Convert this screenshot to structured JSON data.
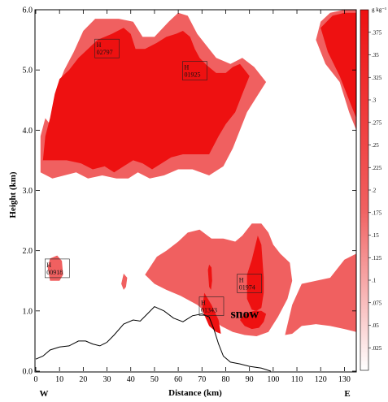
{
  "chart_data": {
    "type": "contour",
    "xlabel": "Distance (km)",
    "ylabel": "Height (km)",
    "xlim": [
      0,
      135
    ],
    "ylim": [
      0,
      6
    ],
    "x_ticks": [
      "0",
      "10",
      "20",
      "30",
      "40",
      "50",
      "60",
      "70",
      "80",
      "90",
      "100",
      "110",
      "120",
      "130"
    ],
    "y_ticks": [
      "0.0",
      "1.0",
      "2.0",
      "3.0",
      "4.0",
      "5.0",
      "6.0"
    ],
    "direction_labels": {
      "left": "W",
      "right": "E"
    },
    "colorbar": {
      "unit_label": "g kg⁻¹",
      "ticks": [
        ".025",
        ".05",
        ".075",
        ".1",
        ".125",
        ".15",
        ".175",
        ".2",
        ".225",
        ".25",
        ".275",
        ".3",
        ".325",
        ".35",
        ".375"
      ],
      "range": [
        0,
        0.4
      ],
      "colors": {
        "low": "#ffffff",
        "mid": "#f06060",
        "high": "#ee1111"
      }
    },
    "fill_colors": {
      "outer": "#f06060",
      "inner": "#ee1111"
    },
    "extrema_labels": [
      {
        "letter": "H",
        "value": "02797",
        "x": 30,
        "y": 5.35
      },
      {
        "letter": "H",
        "value": "01925",
        "x": 67,
        "y": 4.98
      },
      {
        "letter": "H",
        "value": "00918",
        "x": 9,
        "y": 1.7
      },
      {
        "letter": "H",
        "value": "01974",
        "x": 90,
        "y": 1.45
      },
      {
        "letter": "H",
        "value": "01343",
        "x": 74,
        "y": 1.07
      }
    ],
    "annotation": {
      "text": "snow",
      "x": 88,
      "y": 0.88
    },
    "terrain": [
      [
        0,
        0.2
      ],
      [
        3,
        0.25
      ],
      [
        6,
        0.35
      ],
      [
        10,
        0.4
      ],
      [
        14,
        0.42
      ],
      [
        18,
        0.5
      ],
      [
        21,
        0.5
      ],
      [
        24,
        0.45
      ],
      [
        27,
        0.42
      ],
      [
        30,
        0.48
      ],
      [
        33,
        0.6
      ],
      [
        37,
        0.78
      ],
      [
        41,
        0.85
      ],
      [
        44,
        0.83
      ],
      [
        47,
        0.95
      ],
      [
        50,
        1.07
      ],
      [
        54,
        1.0
      ],
      [
        58,
        0.88
      ],
      [
        62,
        0.82
      ],
      [
        66,
        0.92
      ],
      [
        70,
        0.95
      ],
      [
        73,
        0.9
      ],
      [
        75,
        0.7
      ],
      [
        77,
        0.45
      ],
      [
        79,
        0.25
      ],
      [
        82,
        0.15
      ],
      [
        86,
        0.12
      ],
      [
        90,
        0.08
      ],
      [
        95,
        0.05
      ],
      [
        99,
        0.0
      ]
    ],
    "regions": {
      "outer": [
        [
          [
            2,
            3.3
          ],
          [
            2,
            3.9
          ],
          [
            4,
            4.2
          ],
          [
            6,
            4.1
          ],
          [
            9,
            4.7
          ],
          [
            12,
            5.0
          ],
          [
            16,
            5.3
          ],
          [
            20,
            5.65
          ],
          [
            25,
            5.85
          ],
          [
            30,
            5.85
          ],
          [
            35,
            5.85
          ],
          [
            41,
            5.8
          ],
          [
            45,
            5.55
          ],
          [
            50,
            5.55
          ],
          [
            56,
            5.8
          ],
          [
            60,
            5.95
          ],
          [
            64,
            5.9
          ],
          [
            68,
            5.6
          ],
          [
            72,
            5.4
          ],
          [
            76,
            5.2
          ],
          [
            82,
            5.1
          ],
          [
            87,
            5.2
          ],
          [
            92,
            5.05
          ],
          [
            97,
            4.8
          ],
          [
            93,
            4.55
          ],
          [
            89,
            4.3
          ],
          [
            86,
            4.0
          ],
          [
            83,
            3.7
          ],
          [
            79,
            3.4
          ],
          [
            73,
            3.25
          ],
          [
            66,
            3.35
          ],
          [
            60,
            3.35
          ],
          [
            54,
            3.25
          ],
          [
            48,
            3.2
          ],
          [
            43,
            3.3
          ],
          [
            39,
            3.2
          ],
          [
            34,
            3.2
          ],
          [
            28,
            3.25
          ],
          [
            22,
            3.2
          ],
          [
            17,
            3.3
          ],
          [
            12,
            3.25
          ],
          [
            7,
            3.2
          ]
        ],
        [
          [
            5,
            1.72
          ],
          [
            6,
            1.87
          ],
          [
            9,
            1.92
          ],
          [
            11,
            1.83
          ],
          [
            11.5,
            1.6
          ],
          [
            10,
            1.5
          ],
          [
            6,
            1.5
          ]
        ],
        [
          [
            36,
            1.45
          ],
          [
            37,
            1.62
          ],
          [
            38.5,
            1.55
          ],
          [
            38,
            1.4
          ],
          [
            37,
            1.35
          ]
        ],
        [
          [
            46,
            1.6
          ],
          [
            51,
            1.9
          ],
          [
            55,
            2.0
          ],
          [
            60,
            2.15
          ],
          [
            64,
            2.3
          ],
          [
            69,
            2.35
          ],
          [
            74,
            2.2
          ],
          [
            79,
            2.2
          ],
          [
            84,
            2.15
          ],
          [
            87,
            2.25
          ],
          [
            91,
            2.45
          ],
          [
            95,
            2.45
          ],
          [
            98,
            2.3
          ],
          [
            100,
            2.1
          ],
          [
            103,
            1.95
          ],
          [
            107,
            1.8
          ],
          [
            108,
            1.5
          ],
          [
            106,
            1.2
          ],
          [
            102,
            0.9
          ],
          [
            98,
            0.65
          ],
          [
            93,
            0.58
          ],
          [
            88,
            0.6
          ],
          [
            83,
            0.65
          ],
          [
            78,
            0.75
          ],
          [
            74,
            0.9
          ],
          [
            68,
            1.1
          ],
          [
            61,
            1.25
          ],
          [
            55,
            1.35
          ],
          [
            50,
            1.45
          ]
        ],
        [
          [
            105,
            0.6
          ],
          [
            108,
            1.1
          ],
          [
            112,
            1.45
          ],
          [
            118,
            1.5
          ],
          [
            124,
            1.55
          ],
          [
            130,
            1.85
          ],
          [
            135,
            1.95
          ],
          [
            135,
            0.65
          ],
          [
            130,
            0.7
          ],
          [
            124,
            0.75
          ],
          [
            118,
            0.78
          ],
          [
            112,
            0.75
          ],
          [
            108,
            0.62
          ]
        ],
        [
          [
            118,
            5.5
          ],
          [
            120,
            5.8
          ],
          [
            124,
            5.95
          ],
          [
            130,
            6.0
          ],
          [
            135,
            6.0
          ],
          [
            135,
            4.0
          ],
          [
            132,
            4.3
          ],
          [
            128,
            4.8
          ],
          [
            122,
            5.1
          ]
        ]
      ],
      "inner": [
        [
          [
            3,
            3.5
          ],
          [
            4,
            3.9
          ],
          [
            6,
            4.2
          ],
          [
            8,
            4.6
          ],
          [
            10,
            4.85
          ],
          [
            14,
            5.0
          ],
          [
            18,
            5.2
          ],
          [
            22,
            5.35
          ],
          [
            26,
            5.5
          ],
          [
            32,
            5.6
          ],
          [
            37,
            5.7
          ],
          [
            40,
            5.6
          ],
          [
            42,
            5.35
          ],
          [
            46,
            5.35
          ],
          [
            51,
            5.45
          ],
          [
            55,
            5.55
          ],
          [
            59,
            5.6
          ],
          [
            62,
            5.65
          ],
          [
            65,
            5.55
          ],
          [
            67,
            5.35
          ],
          [
            69,
            5.2
          ],
          [
            72,
            5.08
          ],
          [
            76,
            4.95
          ],
          [
            80,
            4.95
          ],
          [
            83,
            5.05
          ],
          [
            86,
            5.1
          ],
          [
            90,
            4.9
          ],
          [
            87,
            4.6
          ],
          [
            84,
            4.3
          ],
          [
            80,
            4.1
          ],
          [
            77,
            3.9
          ],
          [
            73,
            3.6
          ],
          [
            67,
            3.6
          ],
          [
            62,
            3.6
          ],
          [
            57,
            3.55
          ],
          [
            53,
            3.45
          ],
          [
            49,
            3.35
          ],
          [
            45,
            3.45
          ],
          [
            41,
            3.5
          ],
          [
            37,
            3.4
          ],
          [
            33,
            3.3
          ],
          [
            29,
            3.4
          ],
          [
            24,
            3.35
          ],
          [
            19,
            3.45
          ],
          [
            13,
            3.5
          ],
          [
            8,
            3.5
          ]
        ],
        [
          [
            72.5,
            1.68
          ],
          [
            73,
            1.77
          ],
          [
            74,
            1.72
          ],
          [
            74.3,
            1.5
          ],
          [
            73.8,
            1.35
          ],
          [
            73,
            1.4
          ]
        ],
        [
          [
            70,
            1.02
          ],
          [
            71,
            1.3
          ],
          [
            74,
            1.1
          ],
          [
            77,
            0.85
          ],
          [
            78,
            0.62
          ],
          [
            76,
            0.65
          ],
          [
            73,
            0.75
          ]
        ],
        [
          [
            89,
            1.2
          ],
          [
            89,
            1.6
          ],
          [
            91,
            1.85
          ],
          [
            93.5,
            2.25
          ],
          [
            95,
            2.1
          ],
          [
            96,
            1.55
          ],
          [
            96,
            1.3
          ],
          [
            95,
            1.05
          ],
          [
            93,
            1.0
          ],
          [
            91,
            1.02
          ]
        ],
        [
          [
            86,
            0.85
          ],
          [
            88,
            0.95
          ],
          [
            92,
            1.0
          ],
          [
            95,
            1.0
          ],
          [
            97,
            0.95
          ],
          [
            96,
            0.82
          ],
          [
            94,
            0.72
          ],
          [
            91,
            0.7
          ],
          [
            88,
            0.75
          ]
        ],
        [
          [
            120,
            5.7
          ],
          [
            125,
            5.9
          ],
          [
            130,
            5.95
          ],
          [
            135,
            5.95
          ],
          [
            135,
            4.2
          ],
          [
            132,
            4.5
          ],
          [
            128,
            4.9
          ],
          [
            123,
            5.3
          ]
        ]
      ]
    }
  }
}
